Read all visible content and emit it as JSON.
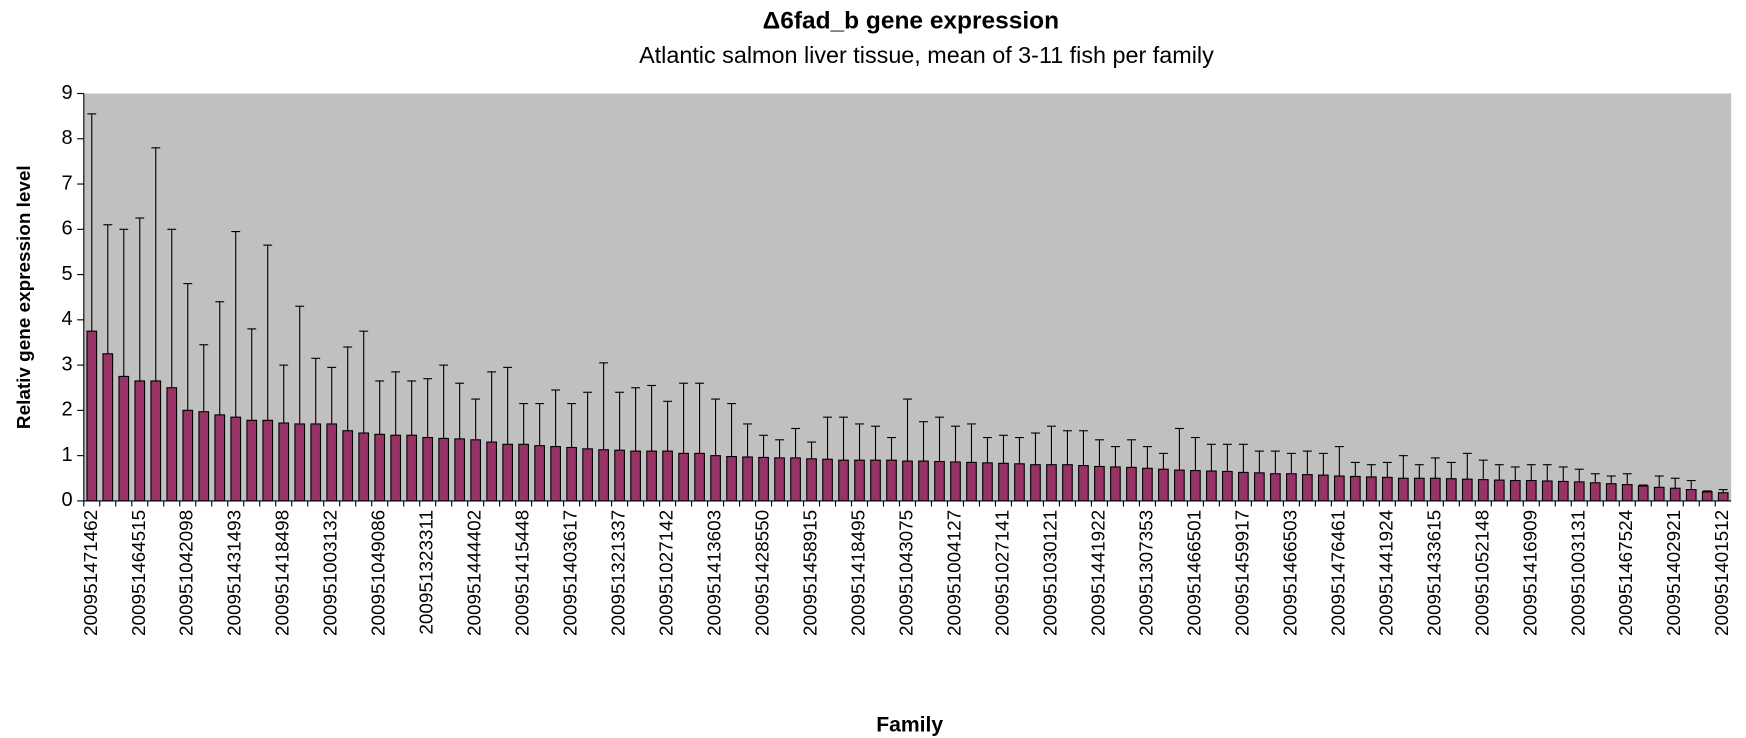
{
  "chart_data": {
    "type": "bar",
    "title": "Δ6fad_b gene expression",
    "subtitle": "Atlantic salmon liver tissue, mean of 3-11 fish per family",
    "x_label": "Family",
    "y_label": "Relativ gene expression level",
    "categories": [
      "200951471462",
      null,
      null,
      "200951464515",
      null,
      null,
      "200951042098",
      null,
      null,
      "200951431493",
      null,
      null,
      "200951418498",
      null,
      null,
      "200951003132",
      null,
      null,
      "200951049086",
      null,
      null,
      "200951323311",
      null,
      null,
      "200951444402",
      null,
      null,
      "200951415448",
      null,
      null,
      "200951403617",
      null,
      null,
      "200951321337",
      null,
      null,
      "200951027142",
      null,
      null,
      "200951413603",
      null,
      null,
      "200951428550",
      null,
      null,
      "200951458915",
      null,
      null,
      "200951418495",
      null,
      null,
      "200951043075",
      null,
      null,
      "200951004127",
      null,
      null,
      "200951027141",
      null,
      null,
      "200951030121",
      null,
      null,
      "200951441922",
      null,
      null,
      "200951307353",
      null,
      null,
      "200951466501",
      null,
      null,
      "200951459917",
      null,
      null,
      "200951466503",
      null,
      null,
      "200951476461",
      null,
      null,
      "200951441924",
      null,
      null,
      "200951433615",
      null,
      null,
      "200951052148",
      null,
      null,
      "200951416909",
      null,
      null,
      "200951003131",
      null,
      null,
      "200951467524",
      null,
      null,
      "200951402921",
      null,
      null,
      "200951401512"
    ],
    "values": [
      3.75,
      3.25,
      2.75,
      2.65,
      2.65,
      2.5,
      2.0,
      1.97,
      1.9,
      1.85,
      1.78,
      1.78,
      1.72,
      1.7,
      1.7,
      1.7,
      1.55,
      1.5,
      1.47,
      1.45,
      1.45,
      1.4,
      1.38,
      1.37,
      1.35,
      1.3,
      1.25,
      1.25,
      1.22,
      1.2,
      1.18,
      1.15,
      1.13,
      1.12,
      1.1,
      1.1,
      1.1,
      1.05,
      1.05,
      1.0,
      0.98,
      0.97,
      0.96,
      0.95,
      0.95,
      0.93,
      0.92,
      0.9,
      0.9,
      0.9,
      0.9,
      0.88,
      0.88,
      0.87,
      0.86,
      0.85,
      0.84,
      0.83,
      0.82,
      0.8,
      0.8,
      0.8,
      0.78,
      0.76,
      0.75,
      0.74,
      0.72,
      0.7,
      0.68,
      0.67,
      0.66,
      0.65,
      0.63,
      0.62,
      0.6,
      0.6,
      0.58,
      0.57,
      0.55,
      0.54,
      0.53,
      0.52,
      0.5,
      0.5,
      0.5,
      0.49,
      0.48,
      0.47,
      0.46,
      0.45,
      0.45,
      0.44,
      0.43,
      0.42,
      0.4,
      0.38,
      0.36,
      0.33,
      0.3,
      0.28,
      0.25,
      0.2,
      0.18
    ],
    "errors": [
      4.8,
      2.85,
      3.25,
      3.6,
      5.15,
      3.5,
      2.8,
      1.48,
      2.5,
      4.1,
      2.02,
      3.87,
      1.28,
      2.6,
      1.45,
      1.25,
      1.85,
      2.25,
      1.18,
      1.4,
      1.2,
      1.3,
      1.62,
      1.23,
      0.9,
      1.55,
      1.7,
      0.9,
      0.93,
      1.25,
      0.97,
      1.25,
      1.92,
      1.28,
      1.4,
      1.45,
      1.1,
      1.55,
      1.55,
      1.25,
      1.17,
      0.73,
      0.49,
      0.4,
      0.65,
      0.37,
      0.93,
      0.95,
      0.8,
      0.75,
      0.5,
      1.37,
      0.87,
      0.98,
      0.79,
      0.85,
      0.56,
      0.62,
      0.58,
      0.7,
      0.85,
      0.75,
      0.77,
      0.59,
      0.45,
      0.61,
      0.48,
      0.35,
      0.92,
      0.73,
      0.59,
      0.6,
      0.62,
      0.48,
      0.5,
      0.45,
      0.52,
      0.48,
      0.65,
      0.31,
      0.27,
      0.33,
      0.5,
      0.3,
      0.45,
      0.36,
      0.57,
      0.43,
      0.34,
      0.3,
      0.35,
      0.36,
      0.32,
      0.28,
      0.2,
      0.17,
      0.24,
      0.02,
      0.25,
      0.22,
      0.2,
      0.02,
      0.07
    ],
    "color": "#993366",
    "plot_background": "#c0c0c0",
    "ylim": [
      0,
      9
    ],
    "yticks": [
      0,
      1,
      2,
      3,
      4,
      5,
      6,
      7,
      8,
      9
    ],
    "grid": false
  }
}
